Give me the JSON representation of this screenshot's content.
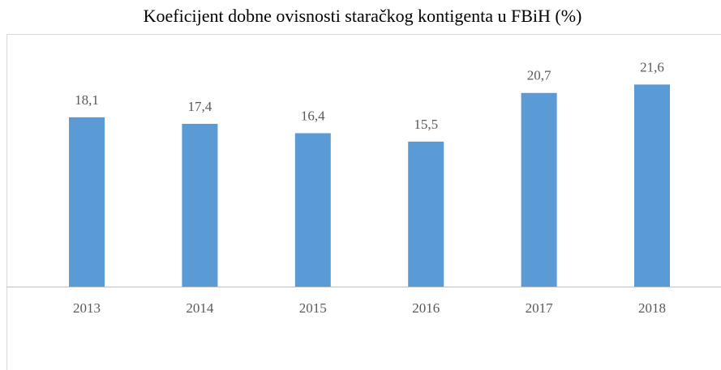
{
  "chart_data": {
    "type": "bar",
    "title": "Koeficijent dobne ovisnosti staračkog kontigenta u FBiH (%)",
    "categories": [
      "2013",
      "2014",
      "2015",
      "2016",
      "2017",
      "2018"
    ],
    "values": [
      18.1,
      17.4,
      16.4,
      15.5,
      20.7,
      21.6
    ],
    "value_labels": [
      "18,1",
      "17,4",
      "16,4",
      "15,5",
      "20,7",
      "21,6"
    ],
    "color": "#5b9bd5",
    "ylim": [
      0,
      27
    ]
  }
}
